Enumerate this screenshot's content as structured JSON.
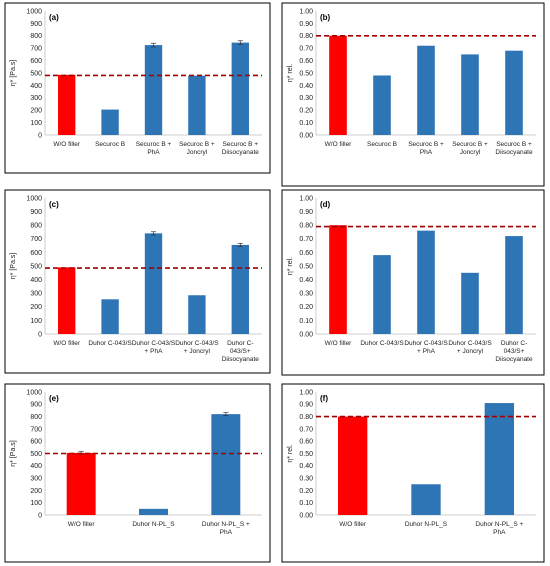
{
  "chart_data": [
    {
      "type": "bar",
      "title": "(a)",
      "ylabel": "η* [Pa.s]",
      "ylim": [
        0,
        1000
      ],
      "yticks": [
        0,
        100,
        200,
        300,
        400,
        500,
        600,
        700,
        800,
        900,
        1000
      ],
      "tick_decimals": 0,
      "categories": [
        [
          "W/O filler"
        ],
        [
          "Securoc B"
        ],
        [
          "Securoc B +",
          "PhA"
        ],
        [
          "Securoc B +",
          "Joncryl"
        ],
        [
          "Securoc B +",
          "Diisocyanate"
        ]
      ],
      "values": [
        485,
        205,
        725,
        478,
        745
      ],
      "errors": [
        0,
        0,
        15,
        0,
        15
      ],
      "reference_line": 480,
      "colors": [
        "#ff0000",
        "#2e75b6",
        "#2e75b6",
        "#2e75b6",
        "#2e75b6"
      ],
      "reference_color": "#a00000"
    },
    {
      "type": "bar",
      "title": "(b)",
      "ylabel": "η* rel.",
      "ylim": [
        0,
        1.0
      ],
      "yticks": [
        0,
        0.1,
        0.2,
        0.3,
        0.4,
        0.5,
        0.6,
        0.7,
        0.8,
        0.9,
        1.0
      ],
      "tick_decimals": 2,
      "categories": [
        [
          "W/O filler"
        ],
        [
          "Securoc B"
        ],
        [
          "Securoc B +",
          "PhA"
        ],
        [
          "Securoc B +",
          "Joncryl"
        ],
        [
          "Securoc B +",
          "Diisocyanate"
        ]
      ],
      "values": [
        0.8,
        0.48,
        0.72,
        0.65,
        0.68
      ],
      "errors": [
        0,
        0,
        0,
        0,
        0
      ],
      "reference_line": 0.8,
      "colors": [
        "#ff0000",
        "#2e75b6",
        "#2e75b6",
        "#2e75b6",
        "#2e75b6"
      ],
      "reference_color": "#a00000"
    },
    {
      "type": "bar",
      "title": "(c)",
      "ylabel": "η* [Pa.s]",
      "ylim": [
        0,
        1000
      ],
      "yticks": [
        0,
        100,
        200,
        300,
        400,
        500,
        600,
        700,
        800,
        900,
        1000
      ],
      "tick_decimals": 0,
      "categories": [
        [
          "W/O filler"
        ],
        [
          "Duhor C-043/S"
        ],
        [
          "Duhor C-043/S",
          "+ PhA"
        ],
        [
          "Duhor C-043/S",
          "+ Joncryl"
        ],
        [
          "Duhor C-",
          "043/S+",
          "Diisocyanate"
        ]
      ],
      "values": [
        490,
        255,
        740,
        285,
        655
      ],
      "errors": [
        0,
        0,
        12,
        0,
        12
      ],
      "reference_line": 485,
      "colors": [
        "#ff0000",
        "#2e75b6",
        "#2e75b6",
        "#2e75b6",
        "#2e75b6"
      ],
      "reference_color": "#a00000"
    },
    {
      "type": "bar",
      "title": "(d)",
      "ylabel": "η* rel.",
      "ylim": [
        0,
        1.0
      ],
      "yticks": [
        0,
        0.1,
        0.2,
        0.3,
        0.4,
        0.5,
        0.6,
        0.7,
        0.8,
        0.9,
        1.0
      ],
      "tick_decimals": 2,
      "categories": [
        [
          "W/O filler"
        ],
        [
          "Duhor C-043/S"
        ],
        [
          "Duhor C-043/S",
          "+ PhA"
        ],
        [
          "Duhor C-043/S",
          "+ Joncryl"
        ],
        [
          "Duhor C-",
          "043/S+",
          "Diisocyanate"
        ]
      ],
      "values": [
        0.8,
        0.58,
        0.76,
        0.45,
        0.72
      ],
      "errors": [
        0,
        0,
        0,
        0,
        0
      ],
      "reference_line": 0.79,
      "colors": [
        "#ff0000",
        "#2e75b6",
        "#2e75b6",
        "#2e75b6",
        "#2e75b6"
      ],
      "reference_color": "#a00000"
    },
    {
      "type": "bar",
      "title": "(e)",
      "ylabel": "η* [Pa.s]",
      "ylim": [
        0,
        1000
      ],
      "yticks": [
        0,
        100,
        200,
        300,
        400,
        500,
        600,
        700,
        800,
        900,
        1000
      ],
      "tick_decimals": 0,
      "categories": [
        [
          "W/O filler"
        ],
        [
          "Duhor N-PL_S"
        ],
        [
          "Duhor N-PL_S +",
          "PhA"
        ]
      ],
      "values": [
        505,
        50,
        820
      ],
      "errors": [
        10,
        0,
        12
      ],
      "reference_line": 500,
      "colors": [
        "#ff0000",
        "#2e75b6",
        "#2e75b6"
      ],
      "reference_color": "#a00000"
    },
    {
      "type": "bar",
      "title": "(f)",
      "ylabel": "η* rel.",
      "ylim": [
        0,
        1.0
      ],
      "yticks": [
        0,
        0.1,
        0.2,
        0.3,
        0.4,
        0.5,
        0.6,
        0.7,
        0.8,
        0.9,
        1.0
      ],
      "tick_decimals": 2,
      "categories": [
        [
          "W/O filler"
        ],
        [
          "Duhor N-PL_S"
        ],
        [
          "Duhor N-PL_S +",
          "PhA"
        ]
      ],
      "values": [
        0.8,
        0.25,
        0.91
      ],
      "errors": [
        0,
        0,
        0
      ],
      "reference_line": 0.8,
      "colors": [
        "#ff0000",
        "#2e75b6",
        "#2e75b6"
      ],
      "reference_color": "#a00000"
    }
  ]
}
